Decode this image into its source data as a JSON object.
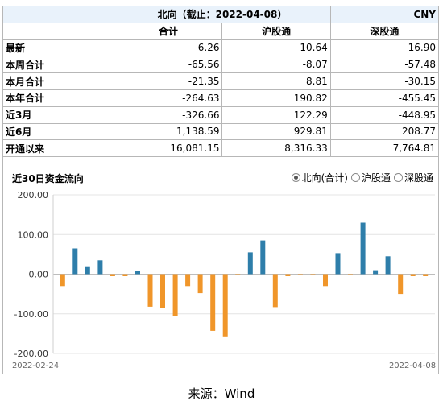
{
  "table": {
    "title": "北向（截止：2022-04-08）",
    "unit": "CNY",
    "columns": [
      "合计",
      "沪股通",
      "深股通"
    ],
    "rows": [
      {
        "label": "最新",
        "values": [
          "-6.26",
          "10.64",
          "-16.90"
        ]
      },
      {
        "label": "本周合计",
        "values": [
          "-65.56",
          "-8.07",
          "-57.48"
        ]
      },
      {
        "label": "本月合计",
        "values": [
          "-21.35",
          "8.81",
          "-30.15"
        ]
      },
      {
        "label": "本年合计",
        "values": [
          "-264.63",
          "190.82",
          "-455.45"
        ]
      },
      {
        "label": "近3月",
        "values": [
          "-326.66",
          "122.29",
          "-448.95"
        ]
      },
      {
        "label": "近6月",
        "values": [
          "1,138.59",
          "929.81",
          "208.77"
        ]
      },
      {
        "label": "开通以来",
        "values": [
          "16,081.15",
          "8,316.33",
          "7,764.81"
        ]
      }
    ]
  },
  "chart": {
    "title": "近30日资金流向",
    "radio_options": [
      {
        "label": "北向(合计)",
        "selected": true
      },
      {
        "label": "沪股通",
        "selected": false
      },
      {
        "label": "深股通",
        "selected": false
      }
    ]
  },
  "chart_data": {
    "type": "bar",
    "ylim": [
      -200,
      200
    ],
    "y_ticks": [
      "200.00",
      "100.00",
      "0.00",
      "-100.00",
      "-200.00"
    ],
    "x_start_label": "2022-02-24",
    "x_end_label": "2022-04-08",
    "positive_color": "#2e7eaa",
    "negative_color": "#f0962a",
    "values": [
      -30,
      65,
      20,
      35,
      -5,
      -5,
      8,
      -82,
      -85,
      -105,
      -30,
      -48,
      -143,
      -157,
      -3,
      55,
      85,
      -83,
      -5,
      -3,
      -3,
      -30,
      53,
      -3,
      130,
      10,
      45,
      -50,
      -5,
      -5
    ]
  },
  "source": "来源：Wind"
}
